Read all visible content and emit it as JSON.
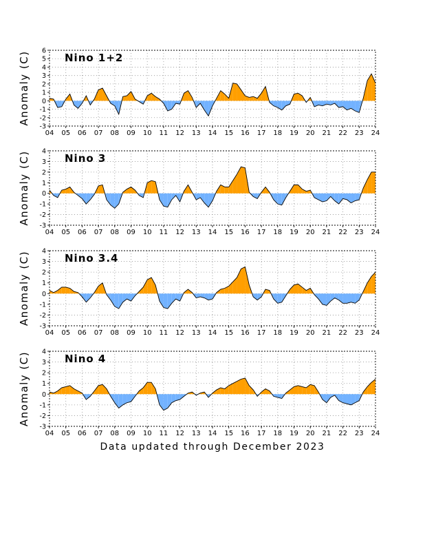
{
  "footer": "Data updated through December 2023",
  "colors": {
    "positive": "#ff9f00",
    "negative": "#72b2ff",
    "line": "#000000",
    "grid": "#909090"
  },
  "chart_data": [
    {
      "type": "area",
      "title": "Nino 1+2",
      "ylabel": "Anomaly (C)",
      "ylim": [
        -3,
        6
      ],
      "yticks": [
        "-3",
        "-2",
        "-1",
        "0",
        "1",
        "2",
        "3",
        "4",
        "5",
        "6"
      ],
      "xticks": [
        "04",
        "05",
        "06",
        "07",
        "08",
        "09",
        "10",
        "11",
        "12",
        "13",
        "14",
        "15",
        "16",
        "17",
        "18",
        "19",
        "20",
        "21",
        "22",
        "23",
        "24"
      ],
      "xlim": [
        2004,
        2024
      ],
      "grid": true,
      "x": [
        2004.0,
        2004.25,
        2004.5,
        2004.75,
        2005.0,
        2005.25,
        2005.5,
        2005.75,
        2006.0,
        2006.25,
        2006.5,
        2006.75,
        2007.0,
        2007.25,
        2007.5,
        2007.75,
        2008.0,
        2008.25,
        2008.5,
        2008.75,
        2009.0,
        2009.25,
        2009.5,
        2009.75,
        2010.0,
        2010.25,
        2010.5,
        2010.75,
        2011.0,
        2011.25,
        2011.5,
        2011.75,
        2012.0,
        2012.25,
        2012.5,
        2012.75,
        2013.0,
        2013.25,
        2013.5,
        2013.75,
        2014.0,
        2014.25,
        2014.5,
        2014.75,
        2015.0,
        2015.25,
        2015.5,
        2015.75,
        2016.0,
        2016.25,
        2016.5,
        2016.75,
        2017.0,
        2017.25,
        2017.5,
        2017.75,
        2018.0,
        2018.25,
        2018.5,
        2018.75,
        2019.0,
        2019.25,
        2019.5,
        2019.75,
        2020.0,
        2020.25,
        2020.5,
        2020.75,
        2021.0,
        2021.25,
        2021.5,
        2021.75,
        2022.0,
        2022.25,
        2022.5,
        2022.75,
        2023.0,
        2023.25,
        2023.5,
        2023.75,
        2024.0
      ],
      "values": [
        0.3,
        0.2,
        -0.8,
        -0.7,
        0.2,
        0.8,
        -0.5,
        -0.9,
        -0.3,
        0.6,
        -0.5,
        0.2,
        1.3,
        1.5,
        0.6,
        -0.3,
        -0.6,
        -1.6,
        0.5,
        0.6,
        1.1,
        0.2,
        -0.1,
        -0.4,
        0.6,
        0.9,
        0.5,
        0.2,
        -0.3,
        -1.2,
        -1.0,
        -0.3,
        -0.4,
        0.9,
        1.2,
        0.4,
        -0.8,
        -0.3,
        -1.1,
        -1.8,
        -0.6,
        0.3,
        1.2,
        0.8,
        0.3,
        2.1,
        2.0,
        1.3,
        0.6,
        0.4,
        0.5,
        0.3,
        0.9,
        1.7,
        -0.2,
        -0.6,
        -0.8,
        -1.1,
        -0.6,
        -0.4,
        0.8,
        0.9,
        0.6,
        -0.2,
        0.4,
        -0.7,
        -0.5,
        -0.6,
        -0.4,
        -0.5,
        -0.3,
        -0.8,
        -0.7,
        -1.1,
        -0.9,
        -1.2,
        -1.4,
        0.3,
        2.4,
        3.2,
        2.1
      ]
    },
    {
      "type": "area",
      "title": "Nino 3",
      "ylabel": "Anomaly (C)",
      "ylim": [
        -3,
        4
      ],
      "yticks": [
        "-3",
        "-2",
        "-1",
        "0",
        "1",
        "2",
        "3",
        "4"
      ],
      "xticks": [
        "04",
        "05",
        "06",
        "07",
        "08",
        "09",
        "10",
        "11",
        "12",
        "13",
        "14",
        "15",
        "16",
        "17",
        "18",
        "19",
        "20",
        "21",
        "22",
        "23",
        "24"
      ],
      "xlim": [
        2004,
        2024
      ],
      "grid": true,
      "x": [
        2004.0,
        2004.25,
        2004.5,
        2004.75,
        2005.0,
        2005.25,
        2005.5,
        2005.75,
        2006.0,
        2006.25,
        2006.5,
        2006.75,
        2007.0,
        2007.25,
        2007.5,
        2007.75,
        2008.0,
        2008.25,
        2008.5,
        2008.75,
        2009.0,
        2009.25,
        2009.5,
        2009.75,
        2010.0,
        2010.25,
        2010.5,
        2010.75,
        2011.0,
        2011.25,
        2011.5,
        2011.75,
        2012.0,
        2012.25,
        2012.5,
        2012.75,
        2013.0,
        2013.25,
        2013.5,
        2013.75,
        2014.0,
        2014.25,
        2014.5,
        2014.75,
        2015.0,
        2015.25,
        2015.5,
        2015.75,
        2016.0,
        2016.25,
        2016.5,
        2016.75,
        2017.0,
        2017.25,
        2017.5,
        2017.75,
        2018.0,
        2018.25,
        2018.5,
        2018.75,
        2019.0,
        2019.25,
        2019.5,
        2019.75,
        2020.0,
        2020.25,
        2020.5,
        2020.75,
        2021.0,
        2021.25,
        2021.5,
        2021.75,
        2022.0,
        2022.25,
        2022.5,
        2022.75,
        2023.0,
        2023.25,
        2023.5,
        2023.75,
        2024.0
      ],
      "values": [
        0.3,
        -0.2,
        -0.4,
        0.3,
        0.4,
        0.6,
        0.1,
        -0.2,
        -0.5,
        -1.0,
        -0.6,
        -0.1,
        0.7,
        0.8,
        -0.6,
        -1.1,
        -1.4,
        -1.0,
        0.1,
        0.4,
        0.6,
        0.3,
        -0.2,
        -0.4,
        1.0,
        1.2,
        1.1,
        -0.6,
        -1.2,
        -1.3,
        -0.6,
        -0.2,
        -0.8,
        0.2,
        0.8,
        0.1,
        -0.6,
        -0.4,
        -0.9,
        -1.3,
        -0.7,
        0.2,
        0.8,
        0.6,
        0.6,
        1.2,
        1.8,
        2.5,
        2.4,
        0.1,
        -0.3,
        -0.5,
        0.1,
        0.6,
        0.1,
        -0.6,
        -1.0,
        -1.1,
        -0.4,
        0.2,
        0.8,
        0.8,
        0.4,
        0.2,
        0.3,
        -0.4,
        -0.6,
        -0.8,
        -0.7,
        -0.3,
        -0.7,
        -1.0,
        -0.5,
        -0.6,
        -0.9,
        -0.7,
        -0.6,
        0.5,
        1.3,
        2.0,
        2.0
      ]
    },
    {
      "type": "area",
      "title": "Nino 3.4",
      "ylabel": "Anomaly (C)",
      "ylim": [
        -3,
        4
      ],
      "yticks": [
        "-3",
        "-2",
        "-1",
        "0",
        "1",
        "2",
        "3",
        "4"
      ],
      "xticks": [
        "04",
        "05",
        "06",
        "07",
        "08",
        "09",
        "10",
        "11",
        "12",
        "13",
        "14",
        "15",
        "16",
        "17",
        "18",
        "19",
        "20",
        "21",
        "22",
        "23",
        "24"
      ],
      "xlim": [
        2004,
        2024
      ],
      "grid": true,
      "x": [
        2004.0,
        2004.25,
        2004.5,
        2004.75,
        2005.0,
        2005.25,
        2005.5,
        2005.75,
        2006.0,
        2006.25,
        2006.5,
        2006.75,
        2007.0,
        2007.25,
        2007.5,
        2007.75,
        2008.0,
        2008.25,
        2008.5,
        2008.75,
        2009.0,
        2009.25,
        2009.5,
        2009.75,
        2010.0,
        2010.25,
        2010.5,
        2010.75,
        2011.0,
        2011.25,
        2011.5,
        2011.75,
        2012.0,
        2012.25,
        2012.5,
        2012.75,
        2013.0,
        2013.25,
        2013.5,
        2013.75,
        2014.0,
        2014.25,
        2014.5,
        2014.75,
        2015.0,
        2015.25,
        2015.5,
        2015.75,
        2016.0,
        2016.25,
        2016.5,
        2016.75,
        2017.0,
        2017.25,
        2017.5,
        2017.75,
        2018.0,
        2018.25,
        2018.5,
        2018.75,
        2019.0,
        2019.25,
        2019.5,
        2019.75,
        2020.0,
        2020.25,
        2020.5,
        2020.75,
        2021.0,
        2021.25,
        2021.5,
        2021.75,
        2022.0,
        2022.25,
        2022.5,
        2022.75,
        2023.0,
        2023.25,
        2023.5,
        2023.75,
        2024.0
      ],
      "values": [
        0.3,
        0.1,
        0.3,
        0.6,
        0.6,
        0.5,
        0.2,
        0.1,
        -0.3,
        -0.8,
        -0.4,
        0.1,
        0.7,
        1.0,
        -0.1,
        -0.6,
        -1.2,
        -1.4,
        -0.8,
        -0.5,
        -0.7,
        -0.2,
        0.2,
        0.6,
        1.3,
        1.5,
        0.8,
        -0.7,
        -1.3,
        -1.4,
        -0.9,
        -0.5,
        -0.7,
        0.1,
        0.4,
        0.1,
        -0.4,
        -0.3,
        -0.4,
        -0.6,
        -0.5,
        0.1,
        0.4,
        0.5,
        0.7,
        1.1,
        1.5,
        2.3,
        2.5,
        0.8,
        -0.3,
        -0.6,
        -0.3,
        0.4,
        0.3,
        -0.5,
        -0.9,
        -0.8,
        -0.2,
        0.4,
        0.8,
        0.9,
        0.6,
        0.3,
        0.5,
        -0.1,
        -0.5,
        -1.0,
        -1.1,
        -0.7,
        -0.4,
        -0.6,
        -0.9,
        -0.9,
        -0.8,
        -0.9,
        -0.6,
        0.2,
        1.0,
        1.6,
        2.0
      ]
    },
    {
      "type": "area",
      "title": "Nino 4",
      "ylabel": "Anomaly (C)",
      "ylim": [
        -3,
        4
      ],
      "yticks": [
        "-3",
        "-2",
        "-1",
        "0",
        "1",
        "2",
        "3",
        "4"
      ],
      "xticks": [
        "04",
        "05",
        "06",
        "07",
        "08",
        "09",
        "10",
        "11",
        "12",
        "13",
        "14",
        "15",
        "16",
        "17",
        "18",
        "19",
        "20",
        "21",
        "22",
        "23",
        "24"
      ],
      "xlim": [
        2004,
        2024
      ],
      "grid": true,
      "x": [
        2004.0,
        2004.25,
        2004.5,
        2004.75,
        2005.0,
        2005.25,
        2005.5,
        2005.75,
        2006.0,
        2006.25,
        2006.5,
        2006.75,
        2007.0,
        2007.25,
        2007.5,
        2007.75,
        2008.0,
        2008.25,
        2008.5,
        2008.75,
        2009.0,
        2009.25,
        2009.5,
        2009.75,
        2010.0,
        2010.25,
        2010.5,
        2010.75,
        2011.0,
        2011.25,
        2011.5,
        2011.75,
        2012.0,
        2012.25,
        2012.5,
        2012.75,
        2013.0,
        2013.25,
        2013.5,
        2013.75,
        2014.0,
        2014.25,
        2014.5,
        2014.75,
        2015.0,
        2015.25,
        2015.5,
        2015.75,
        2016.0,
        2016.25,
        2016.5,
        2016.75,
        2017.0,
        2017.25,
        2017.5,
        2017.75,
        2018.0,
        2018.25,
        2018.5,
        2018.75,
        2019.0,
        2019.25,
        2019.5,
        2019.75,
        2020.0,
        2020.25,
        2020.5,
        2020.75,
        2021.0,
        2021.25,
        2021.5,
        2021.75,
        2022.0,
        2022.25,
        2022.5,
        2022.75,
        2023.0,
        2023.25,
        2023.5,
        2023.75,
        2024.0
      ],
      "values": [
        0.2,
        0.1,
        0.3,
        0.6,
        0.7,
        0.8,
        0.5,
        0.3,
        0.1,
        -0.5,
        -0.2,
        0.3,
        0.8,
        0.9,
        0.5,
        -0.2,
        -0.8,
        -1.3,
        -1.0,
        -0.8,
        -0.7,
        -0.2,
        0.3,
        0.6,
        1.1,
        1.1,
        0.5,
        -1.0,
        -1.5,
        -1.3,
        -0.8,
        -0.6,
        -0.5,
        -0.2,
        0.1,
        0.2,
        -0.1,
        0.1,
        0.2,
        -0.3,
        0.1,
        0.4,
        0.6,
        0.5,
        0.8,
        1.0,
        1.2,
        1.4,
        1.5,
        0.8,
        0.4,
        -0.2,
        0.2,
        0.5,
        0.3,
        -0.2,
        -0.3,
        -0.4,
        0.1,
        0.4,
        0.7,
        0.8,
        0.7,
        0.6,
        0.9,
        0.8,
        0.2,
        -0.5,
        -0.8,
        -0.3,
        -0.1,
        -0.6,
        -0.8,
        -0.9,
        -1.0,
        -0.8,
        -0.6,
        0.2,
        0.7,
        1.1,
        1.4
      ]
    }
  ]
}
